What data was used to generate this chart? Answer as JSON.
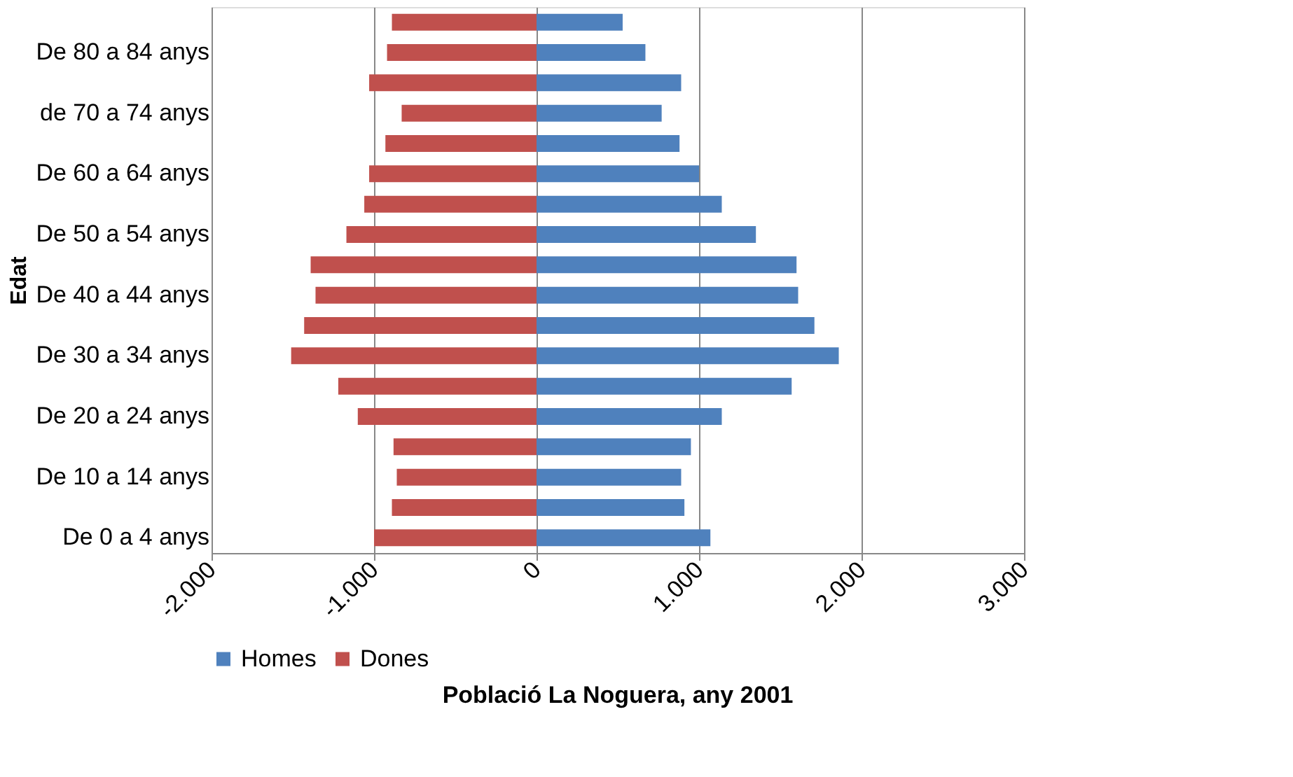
{
  "chart_data": {
    "type": "bar",
    "orientation": "horizontal",
    "title": "Població La Noguera, any 2001",
    "ylabel": "Edat",
    "categories": [
      null,
      "De 80 a 84 anys",
      null,
      "de 70 a 74 anys",
      null,
      "De 60 a 64 anys",
      null,
      "De 50 a 54 anys",
      null,
      "De 40 a 44 anys",
      null,
      "De 30 a 34 anys",
      null,
      "De 20 a 24 anys",
      null,
      "De 10 a 14 anys",
      null,
      "De 0 a 4 anys"
    ],
    "series": [
      {
        "name": "Homes",
        "color": "#4f81bd",
        "values": [
          530,
          670,
          890,
          770,
          880,
          1000,
          1140,
          1350,
          1600,
          1610,
          1710,
          1860,
          1570,
          1140,
          950,
          890,
          910,
          1070
        ]
      },
      {
        "name": "Dones",
        "color": "#c0504d",
        "values": [
          -890,
          -920,
          -1030,
          -830,
          -930,
          -1030,
          -1060,
          -1170,
          -1390,
          -1360,
          -1430,
          -1510,
          -1220,
          -1100,
          -880,
          -860,
          -890,
          -1000
        ]
      }
    ],
    "xlim": [
      -2000,
      3000
    ],
    "xticks": [
      {
        "value": -2000,
        "label": "-2.000"
      },
      {
        "value": -1000,
        "label": "-1.000"
      },
      0,
      {
        "value": 1000,
        "label": "1.000"
      },
      {
        "value": 2000,
        "label": "2.000"
      },
      {
        "value": 3000,
        "label": "3.000"
      }
    ],
    "stacked": true,
    "grid": "x",
    "legend": "bottom"
  }
}
